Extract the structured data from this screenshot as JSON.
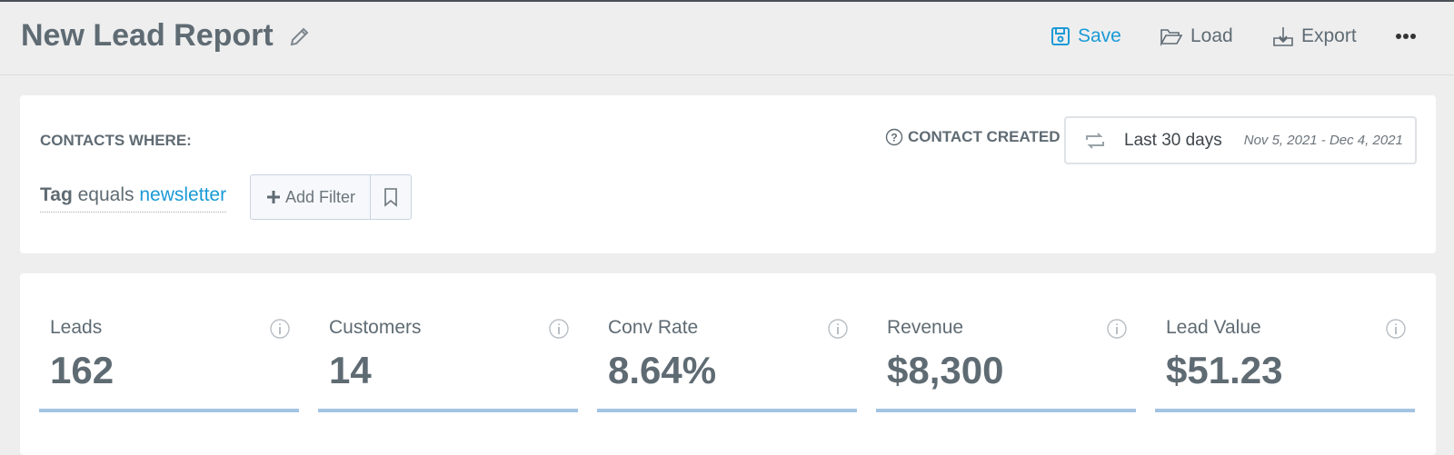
{
  "header": {
    "title": "New Lead Report",
    "actions": [
      "Save",
      "Load",
      "Export"
    ]
  },
  "filters": {
    "label": "CONTACTS WHERE:",
    "conditions": [
      {
        "field": "Tag",
        "operator": "equals",
        "value": "newsletter"
      }
    ],
    "add_filter": "Add Filter",
    "date_field": "CONTACT CREATED",
    "date_preset": "Last 30 days",
    "date_range": "Nov 5, 2021 - Dec 4, 2021"
  },
  "metrics": [
    {
      "label": "Leads",
      "value": "162"
    },
    {
      "label": "Customers",
      "value": "14"
    },
    {
      "label": "Conv Rate",
      "value": "8.64%"
    },
    {
      "label": "Revenue",
      "value": "$8,300"
    },
    {
      "label": "Lead Value",
      "value": "$51.23"
    }
  ]
}
